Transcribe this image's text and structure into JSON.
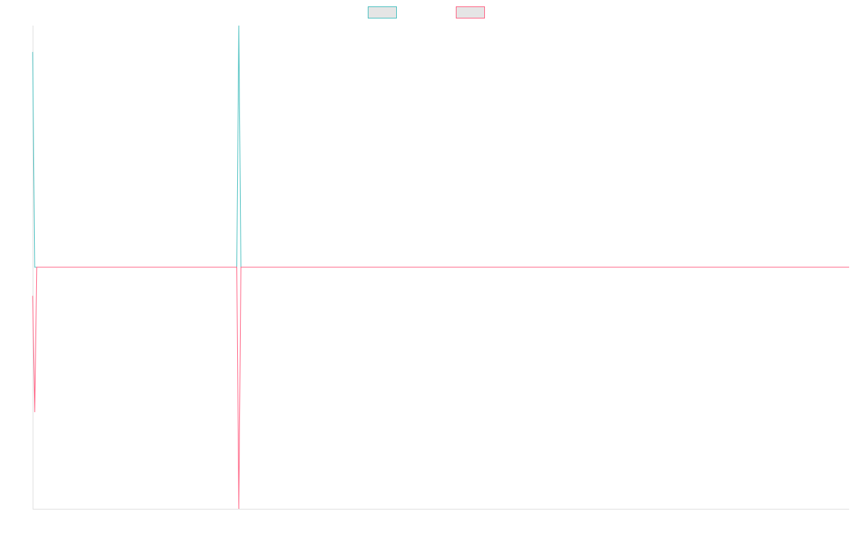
{
  "chart_data": {
    "type": "line",
    "title": "",
    "xlabel": "",
    "ylabel": "",
    "grid": false,
    "legend_position": "top-center",
    "xlim": [
      0,
      400
    ],
    "ylim": [
      -1.1,
      1.1
    ],
    "series": [
      {
        "color": "#4bc0c0",
        "swatch_fill": "#e5e5e5",
        "x": [
          0,
          1,
          2,
          100,
          101,
          102,
          400
        ],
        "y": [
          0.98,
          0.0,
          0.0,
          0.0,
          1.1,
          0.0,
          0.0
        ]
      },
      {
        "color": "#ff6384",
        "swatch_fill": "#e5e5e5",
        "x": [
          0,
          1,
          2,
          100,
          101,
          102,
          400
        ],
        "y": [
          -0.13,
          -0.66,
          0.0,
          0.0,
          -1.1,
          0.0,
          0.0
        ]
      }
    ]
  },
  "colors": {
    "axis": "#e0e0e0",
    "background": "#ffffff"
  }
}
